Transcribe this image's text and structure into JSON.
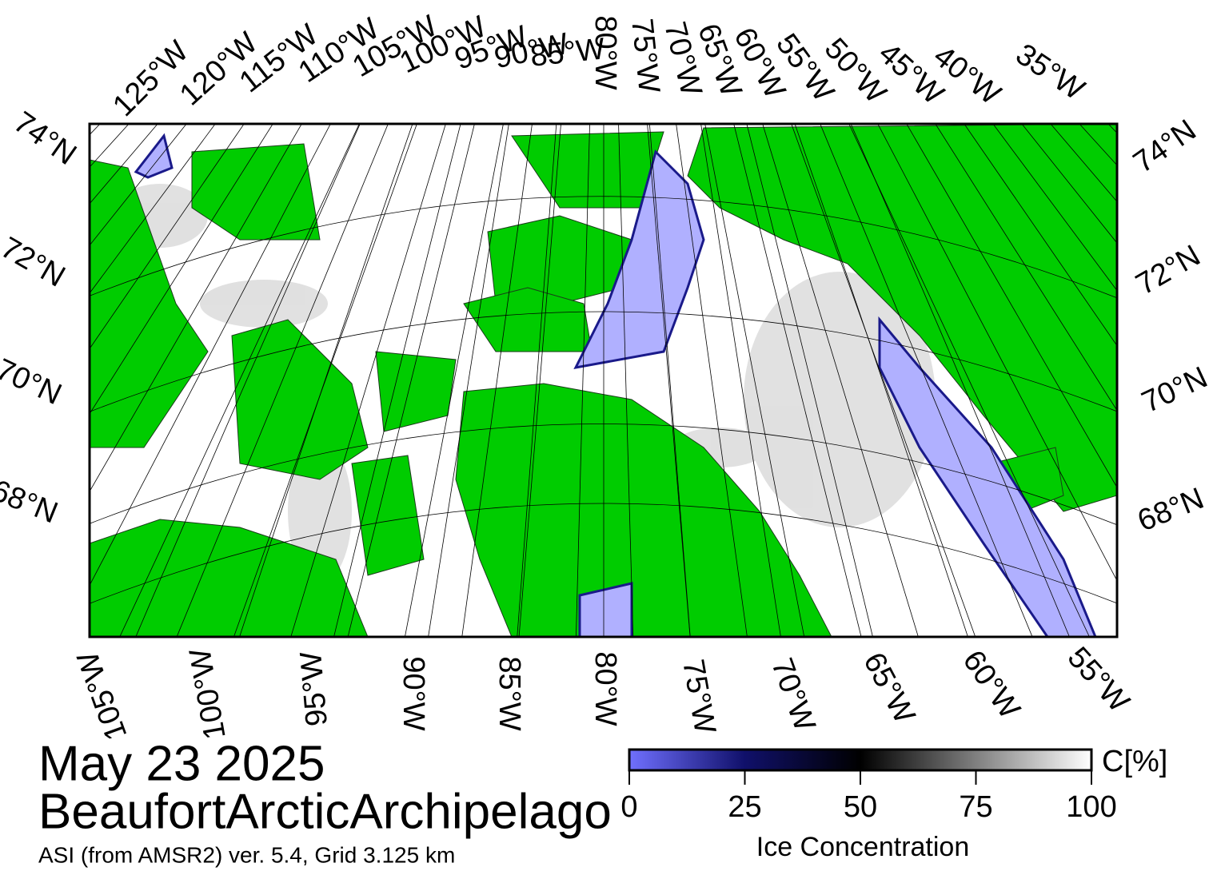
{
  "header": {
    "date": "May 23 2025",
    "region": "BeaufortArcticArchipelago",
    "source": "ASI (from AMSR2) ver. 5.4,  Grid 3.125 km"
  },
  "map": {
    "top_longitudes": [
      "125°W",
      "120°W",
      "115°W",
      "110°W",
      "105°W",
      "100°W",
      "95°W",
      "90°W",
      "85°W",
      "80°W",
      "75°W",
      "70°W",
      "65°W",
      "60°W",
      "55°W",
      "50°W",
      "45°W",
      "40°W",
      "35°W"
    ],
    "bottom_longitudes": [
      "105°W",
      "100°W",
      "95°W",
      "90°W",
      "85°W",
      "80°W",
      "75°W",
      "70°W",
      "65°W",
      "60°W",
      "55°W"
    ],
    "left_latitudes": [
      "74°N",
      "72°N",
      "70°N",
      "68°N"
    ],
    "right_latitudes": [
      "74°N",
      "72°N",
      "70°N",
      "68°N"
    ]
  },
  "colorbar": {
    "lim": [
      0,
      100
    ],
    "ticks": [
      0,
      25,
      50,
      75,
      100
    ],
    "unit": "C[%]",
    "label": "Ice Concentration"
  }
}
